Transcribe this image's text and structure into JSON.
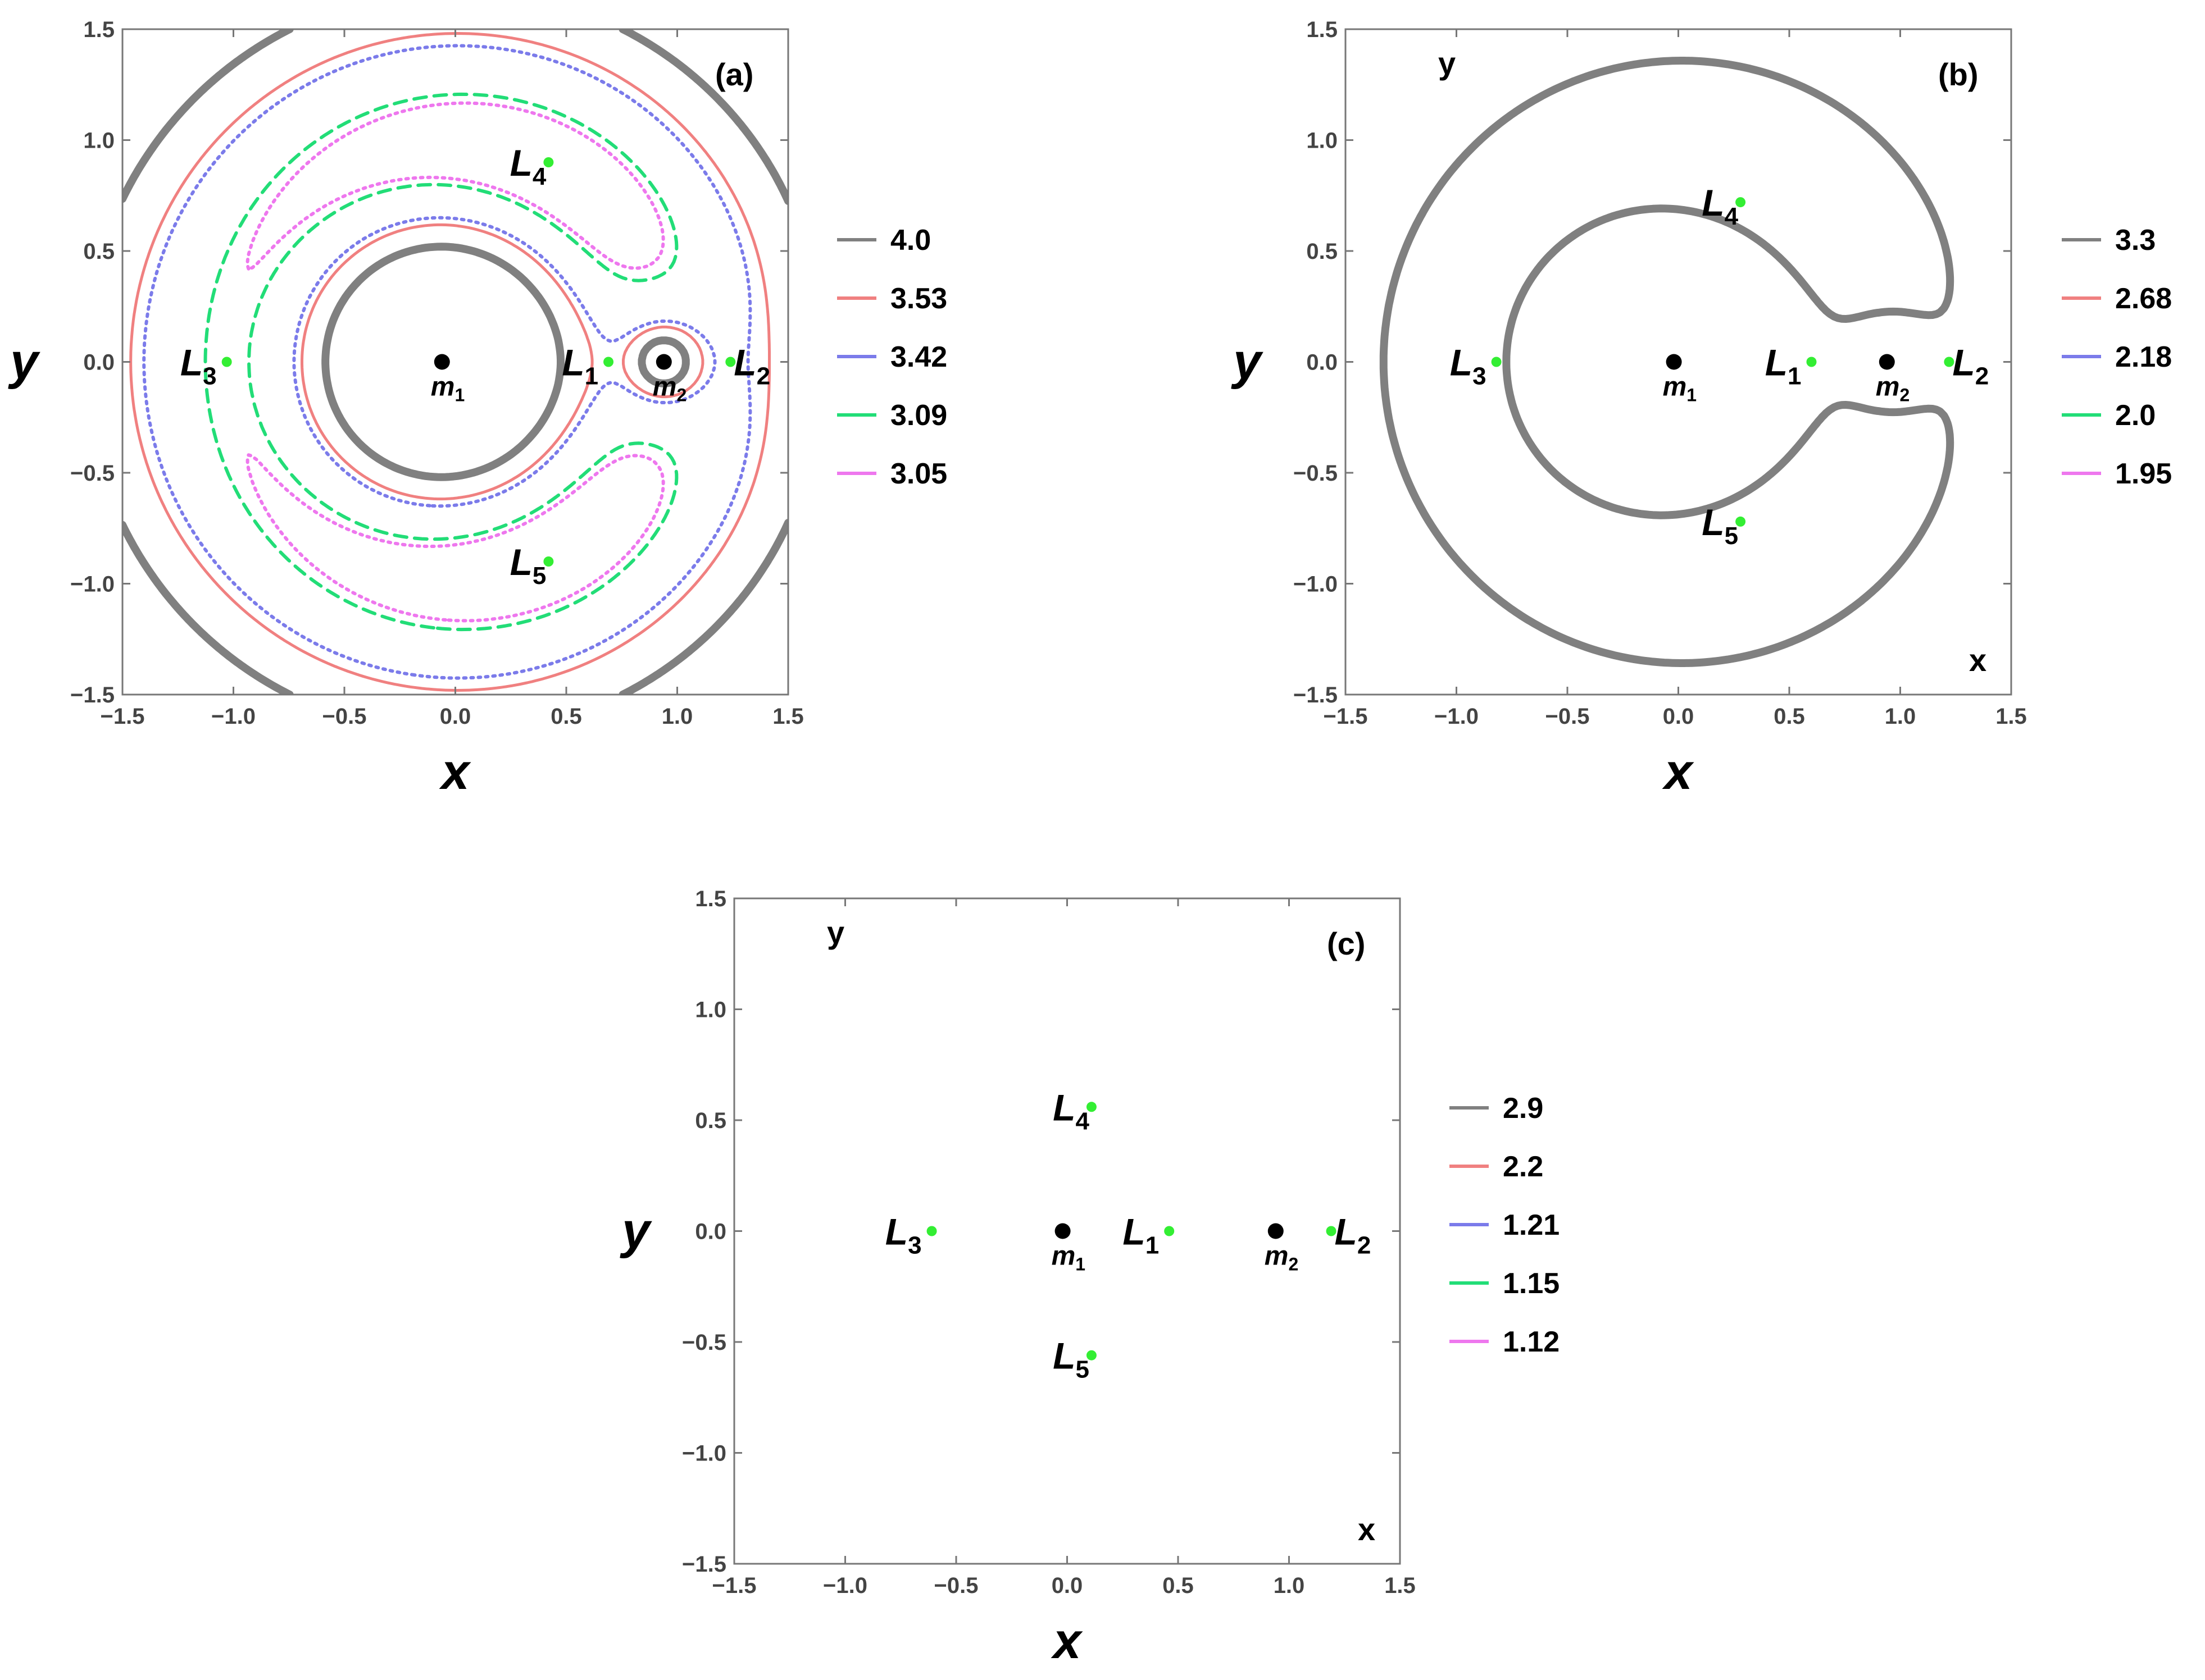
{
  "chart_data": [
    {
      "type": "contour",
      "panel_tag": "(a)",
      "xlabel": "x",
      "ylabel": "y",
      "inner_xlabel": "",
      "inner_ylabel": "",
      "xlim": [
        -1.5,
        1.5
      ],
      "ylim": [
        -1.5,
        1.5
      ],
      "x_ticks": [
        "−1.5",
        "−1.0",
        "−0.5",
        "0.0",
        "0.5",
        "1.0",
        "1.5"
      ],
      "y_ticks": [
        "−1.5",
        "−1.0",
        "−0.5",
        "0.0",
        "0.5",
        "1.0",
        "1.5"
      ],
      "mu": 0.06,
      "primaries": [
        {
          "name": "m",
          "sub": "1",
          "x": -0.06,
          "y": 0.0
        },
        {
          "name": "m",
          "sub": "2",
          "x": 0.94,
          "y": 0.0
        }
      ],
      "lagrange_points": [
        {
          "name": "L",
          "sub": "1",
          "x": 0.69,
          "y": 0.0
        },
        {
          "name": "L",
          "sub": "2",
          "x": 1.24,
          "y": 0.0
        },
        {
          "name": "L",
          "sub": "3",
          "x": -1.03,
          "y": 0.0
        },
        {
          "name": "L",
          "sub": "4",
          "x": 0.42,
          "y": 0.9
        },
        {
          "name": "L",
          "sub": "5",
          "x": 0.42,
          "y": -0.9
        }
      ],
      "legend": [
        {
          "value": "4.0",
          "color": "#808080",
          "style": "thick"
        },
        {
          "value": "3.53",
          "color": "#f08080",
          "style": "solid"
        },
        {
          "value": "3.42",
          "color": "#7b7bea",
          "style": "dotted"
        },
        {
          "value": "3.09",
          "color": "#22dd77",
          "style": "dashed"
        },
        {
          "value": "3.05",
          "color": "#ee77ee",
          "style": "dotted"
        }
      ],
      "levels": [
        4.0,
        3.53,
        3.42,
        3.09,
        3.05
      ],
      "x_scale": 1.0,
      "add_term": 0.0
    },
    {
      "type": "contour",
      "panel_tag": "(b)",
      "xlabel": "x",
      "ylabel": "y",
      "inner_xlabel": "x",
      "inner_ylabel": "y",
      "xlim": [
        -1.5,
        1.5
      ],
      "ylim": [
        -1.5,
        1.5
      ],
      "x_ticks": [
        "−1.5",
        "−1.0",
        "−0.5",
        "0.0",
        "0.5",
        "1.0",
        "1.5"
      ],
      "y_ticks": [
        "−1.5",
        "−1.0",
        "−0.5",
        "0.0",
        "0.5",
        "1.0",
        "1.5"
      ],
      "mu": 0.06,
      "primaries": [
        {
          "name": "m",
          "sub": "1",
          "x": -0.02,
          "y": 0.0
        },
        {
          "name": "m",
          "sub": "2",
          "x": 0.94,
          "y": 0.0
        }
      ],
      "lagrange_points": [
        {
          "name": "L",
          "sub": "1",
          "x": 0.6,
          "y": 0.0
        },
        {
          "name": "L",
          "sub": "2",
          "x": 1.22,
          "y": 0.0
        },
        {
          "name": "L",
          "sub": "3",
          "x": -0.82,
          "y": 0.0
        },
        {
          "name": "L",
          "sub": "4",
          "x": 0.28,
          "y": 0.72
        },
        {
          "name": "L",
          "sub": "5",
          "x": 0.28,
          "y": -0.72
        }
      ],
      "legend": [
        {
          "value": "3.3",
          "color": "#808080",
          "style": "thick"
        },
        {
          "value": "2.68",
          "color": "#f08080",
          "style": "solid"
        },
        {
          "value": "2.18",
          "color": "#7b7bea",
          "style": "dotted"
        },
        {
          "value": "2.0",
          "color": "#22dd77",
          "style": "dashed"
        },
        {
          "value": "1.95",
          "color": "#ee77ee",
          "style": "dotted"
        }
      ],
      "levels": [
        3.3,
        2.68,
        2.18,
        2.0,
        1.95
      ],
      "x_scale": 1.0,
      "add_term": 0.0
    },
    {
      "type": "contour",
      "panel_tag": "(c)",
      "xlabel": "x",
      "ylabel": "y",
      "inner_xlabel": "x",
      "inner_ylabel": "y",
      "xlim": [
        -1.5,
        1.5
      ],
      "ylim": [
        -1.5,
        1.5
      ],
      "x_ticks": [
        "−1.5",
        "−1.0",
        "−0.5",
        "0.0",
        "0.5",
        "1.0",
        "1.5"
      ],
      "y_ticks": [
        "−1.5",
        "−1.0",
        "−0.5",
        "0.0",
        "0.5",
        "1.0",
        "1.5"
      ],
      "mu": 0.06,
      "primaries": [
        {
          "name": "m",
          "sub": "1",
          "x": -0.02,
          "y": 0.0
        },
        {
          "name": "m",
          "sub": "2",
          "x": 0.94,
          "y": 0.0
        }
      ],
      "lagrange_points": [
        {
          "name": "L",
          "sub": "1",
          "x": 0.46,
          "y": 0.0
        },
        {
          "name": "L",
          "sub": "2",
          "x": 1.19,
          "y": 0.0
        },
        {
          "name": "L",
          "sub": "3",
          "x": -0.61,
          "y": 0.0
        },
        {
          "name": "L",
          "sub": "4",
          "x": 0.11,
          "y": 0.56
        },
        {
          "name": "L",
          "sub": "5",
          "x": 0.11,
          "y": -0.56
        }
      ],
      "legend": [
        {
          "value": "2.9",
          "color": "#808080",
          "style": "thick"
        },
        {
          "value": "2.2",
          "color": "#f08080",
          "style": "solid"
        },
        {
          "value": "1.21",
          "color": "#7b7bea",
          "style": "dotted"
        },
        {
          "value": "1.15",
          "color": "#22dd77",
          "style": "dashed"
        },
        {
          "value": "1.12",
          "color": "#ee77ee",
          "style": "dotted"
        }
      ],
      "levels": [
        2.9,
        2.2,
        1.21,
        1.15,
        1.12
      ],
      "x_scale": 1.0,
      "add_term": 0.0
    }
  ]
}
